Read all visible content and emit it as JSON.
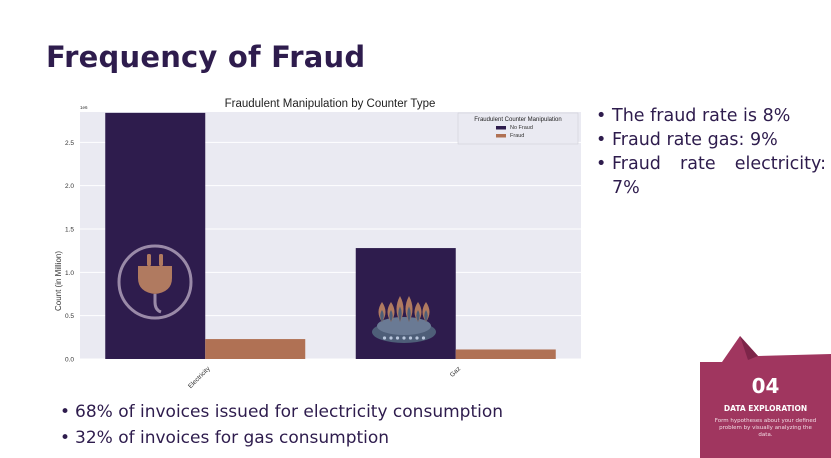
{
  "slide": {
    "title": "Frequency of Fraud",
    "right_bullets": [
      "The fraud rate is 8%",
      "Fraud rate gas: 9%",
      "Fraud rate electricity: 7%"
    ],
    "bottom_bullets": [
      "68% of invoices issued for electricity consumption",
      "32% of invoices for gas consumption"
    ],
    "badge": {
      "number": "04",
      "label": "DATA EXPLORATION",
      "description": "Form hypotheses about your defined problem by visually analyzing the data.",
      "color": "#a0365f"
    }
  },
  "chart_data": {
    "type": "bar",
    "title": "Fraudulent Manipulation by Counter Type",
    "xlabel": "",
    "ylabel": "Count (in Million)",
    "offset_label": "1e6",
    "categories": [
      "Electricity",
      "Gaz"
    ],
    "series": [
      {
        "name": "No Fraud",
        "values": [
          2.84,
          1.28
        ],
        "color": "#2e1c4d"
      },
      {
        "name": "Fraud",
        "values": [
          0.23,
          0.11
        ],
        "color": "#b07154"
      }
    ],
    "ylim": [
      0,
      2.85
    ],
    "yticks": [
      "0.0",
      "0.5",
      "1.0",
      "1.5",
      "2.0",
      "2.5"
    ],
    "grid": true,
    "legend": {
      "title": "Fraudulent Counter Manipulation",
      "position": "top-right"
    },
    "icons": [
      "electric-plug-icon",
      "gas-flame-icon"
    ]
  }
}
